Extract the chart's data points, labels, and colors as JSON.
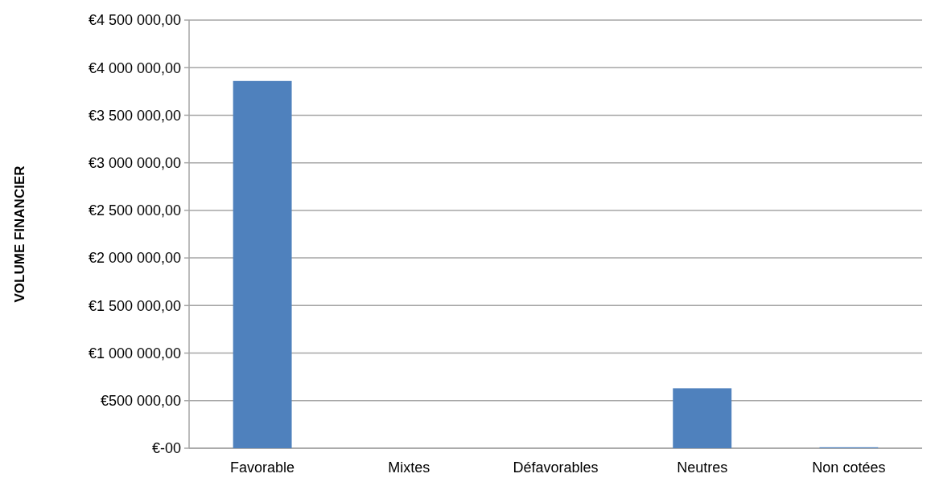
{
  "chart_data": {
    "type": "bar",
    "ylabel": "VOLUME FINANCIER",
    "categories": [
      "Favorable",
      "Mixtes",
      "Défavorables",
      "Neutres",
      "Non cotées"
    ],
    "values": [
      3860000,
      0,
      0,
      630000,
      10000
    ],
    "color": "#4f81bd",
    "ylim": [
      0,
      4500000
    ],
    "yticks": [
      {
        "value": 0,
        "label": "€-00"
      },
      {
        "value": 500000,
        "label": "€500 000,00"
      },
      {
        "value": 1000000,
        "label": "€1 000 000,00"
      },
      {
        "value": 1500000,
        "label": "€1 500 000,00"
      },
      {
        "value": 2000000,
        "label": "€2 000 000,00"
      },
      {
        "value": 2500000,
        "label": "€2 500 000,00"
      },
      {
        "value": 3000000,
        "label": "€3 000 000,00"
      },
      {
        "value": 3500000,
        "label": "€3 500 000,00"
      },
      {
        "value": 4000000,
        "label": "€4 000 000,00"
      },
      {
        "value": 4500000,
        "label": "€4 500 000,00"
      }
    ],
    "grid": "y"
  }
}
